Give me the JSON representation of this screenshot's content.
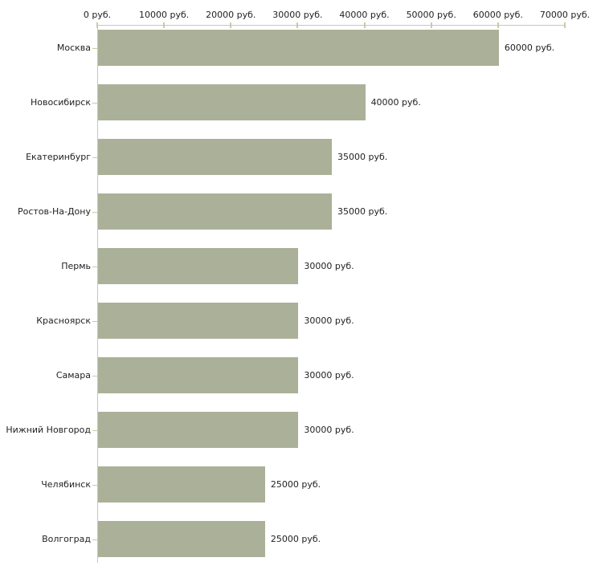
{
  "chart_data": {
    "type": "bar",
    "orientation": "horizontal",
    "title": "",
    "xlabel": "",
    "ylabel": "",
    "unit_suffix": " руб.",
    "categories": [
      "Москва",
      "Новосибирск",
      "Екатеринбург",
      "Ростов-На-Дону",
      "Пермь",
      "Красноярск",
      "Самара",
      "Нижний Новгород",
      "Челябинск",
      "Волгоград"
    ],
    "values": [
      60000,
      40000,
      35000,
      35000,
      30000,
      30000,
      30000,
      30000,
      25000,
      25000
    ],
    "value_labels": [
      "60000 руб.",
      "40000 руб.",
      "35000 руб.",
      "35000 руб.",
      "30000 руб.",
      "30000 руб.",
      "30000 руб.",
      "30000 руб.",
      "25000 руб.",
      "25000 руб."
    ],
    "x_axis": {
      "position": "top",
      "min": 0,
      "max": 70000,
      "tick_values": [
        0,
        10000,
        20000,
        30000,
        40000,
        50000,
        60000,
        70000
      ],
      "tick_labels": [
        "0 руб.",
        "10000 руб.",
        "20000 руб.",
        "30000 руб.",
        "40000 руб.",
        "50000 руб.",
        "60000 руб.",
        "70000 руб."
      ]
    },
    "legend": null,
    "grid": false,
    "colors": {
      "bar": "#abb198",
      "axis_line": "#c6c6c6",
      "tick_mark": "#c9cba3",
      "text": "#222222",
      "background": "#ffffff"
    }
  }
}
